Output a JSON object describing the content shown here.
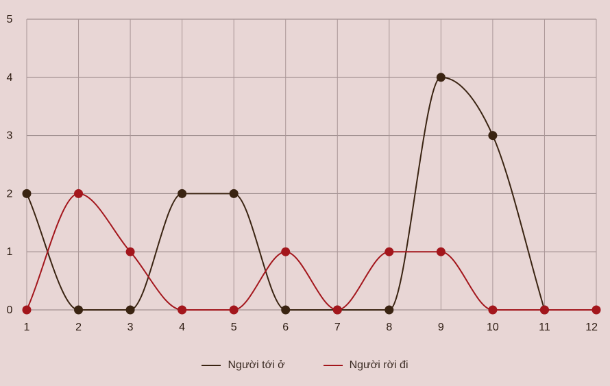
{
  "chart_data": {
    "type": "line",
    "x": [
      1,
      2,
      3,
      4,
      5,
      6,
      7,
      8,
      9,
      10,
      11,
      12
    ],
    "xlim": [
      1,
      12
    ],
    "ylim": [
      0,
      5
    ],
    "yticks": [
      0,
      1,
      2,
      3,
      4,
      5
    ],
    "grid": true,
    "legend_position": "bottom",
    "series": [
      {
        "name": "Người tới ở",
        "color": "#3a2412",
        "values": [
          2,
          0,
          0,
          2,
          2,
          0,
          0,
          0,
          4,
          3,
          0,
          null
        ]
      },
      {
        "name": "Người rời đi",
        "color": "#a3161c",
        "values": [
          0,
          2,
          1,
          0,
          0,
          1,
          0,
          1,
          1,
          0,
          0,
          0
        ]
      }
    ]
  }
}
